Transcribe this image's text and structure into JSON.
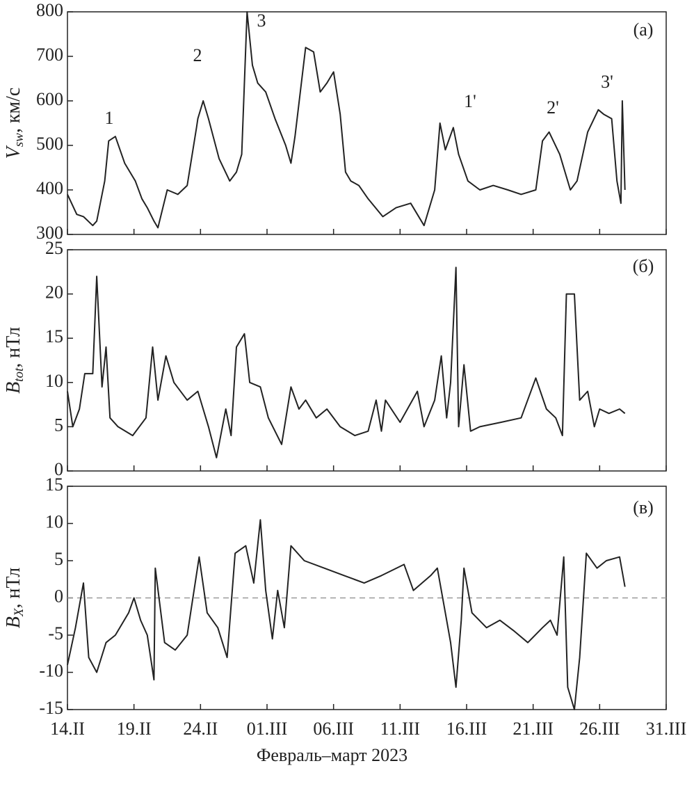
{
  "chart_data": [
    {
      "type": "line",
      "panel_label": "(а)",
      "ylabel_symbol": "V",
      "ylabel_subscript": "sw",
      "ylabel_unit": ", км/с",
      "color": "#222222",
      "xlim": [
        0,
        45
      ],
      "ylim": [
        300,
        800
      ],
      "yticks": [
        300,
        400,
        500,
        600,
        700,
        800
      ],
      "annotations": [
        "1",
        "2",
        "3",
        "1'",
        "2'",
        "3'"
      ],
      "x": [
        0,
        0.7,
        1.2,
        1.9,
        2.2,
        2.8,
        3.1,
        3.6,
        4.3,
        5.1,
        5.6,
        6.0,
        6.5,
        6.8,
        7.5,
        8.3,
        9.0,
        9.7,
        9.8,
        10.2,
        10.6,
        11.4,
        12.2,
        12.7,
        13.1,
        13.5,
        13.9,
        14.3,
        14.9,
        15.6,
        16.4,
        16.8,
        17.1,
        17.9,
        18.5,
        19.0,
        19.5,
        20.0,
        20.5,
        20.9,
        21.3,
        21.9,
        22.6,
        23.7,
        24.7,
        25.8,
        26.8,
        27.6,
        28.0,
        28.4,
        29.0,
        29.4,
        30.1,
        31.0,
        32.0,
        33.1,
        34.1,
        35.2,
        35.7,
        36.2,
        37.0,
        37.8,
        38.3,
        39.1,
        39.9,
        40.3,
        40.9,
        41.3,
        41.6,
        41.7,
        41.9
      ],
      "values": [
        390,
        345,
        340,
        320,
        330,
        420,
        510,
        520,
        460,
        420,
        380,
        360,
        330,
        315,
        400,
        390,
        410,
        540,
        560,
        600,
        560,
        470,
        420,
        440,
        480,
        800,
        680,
        640,
        620,
        560,
        500,
        460,
        520,
        720,
        710,
        620,
        640,
        665,
        570,
        440,
        420,
        410,
        380,
        340,
        360,
        370,
        320,
        400,
        550,
        490,
        540,
        480,
        420,
        400,
        410,
        400,
        390,
        400,
        510,
        530,
        480,
        400,
        420,
        530,
        580,
        570,
        560,
        420,
        370,
        600,
        400
      ]
    },
    {
      "type": "line",
      "panel_label": "(б)",
      "ylabel_symbol": "B",
      "ylabel_subscript": "tot",
      "ylabel_unit": ", нТл",
      "color": "#222222",
      "xlim": [
        0,
        45
      ],
      "ylim": [
        0,
        25
      ],
      "yticks": [
        0,
        5,
        10,
        15,
        20,
        25
      ],
      "x": [
        0,
        0.4,
        0.9,
        1.3,
        1.9,
        2.2,
        2.6,
        2.9,
        3.2,
        3.8,
        4.9,
        5.9,
        6.4,
        6.8,
        7.4,
        8.0,
        9.0,
        9.8,
        10.6,
        11.2,
        11.9,
        12.3,
        12.7,
        13.3,
        13.7,
        14.5,
        15.1,
        16.1,
        16.8,
        17.4,
        17.9,
        18.7,
        19.5,
        20.5,
        21.6,
        22.6,
        23.2,
        23.6,
        23.9,
        25.0,
        26.3,
        26.8,
        27.6,
        28.1,
        28.5,
        28.8,
        29.2,
        29.4,
        29.8,
        30.3,
        31.0,
        32.6,
        34.1,
        35.2,
        36.0,
        36.7,
        37.2,
        37.5,
        38.1,
        38.5,
        39.1,
        39.6,
        40.0,
        40.7,
        41.5,
        41.9
      ],
      "values": [
        9,
        5,
        7,
        11,
        11,
        22,
        9.5,
        14,
        6,
        5,
        4,
        6,
        14,
        8,
        13,
        10,
        8,
        9,
        5,
        1.5,
        7,
        4,
        14,
        15.5,
        10,
        9.5,
        6,
        3,
        9.5,
        7,
        8,
        6,
        7,
        5,
        4,
        4.5,
        8,
        4.5,
        8,
        5.5,
        9,
        5,
        8,
        13,
        6,
        10,
        23,
        5,
        12,
        4.5,
        5,
        5.5,
        6,
        10.5,
        7,
        6,
        4,
        20,
        20,
        8,
        9,
        5,
        7,
        6.5,
        7,
        6.5
      ]
    },
    {
      "type": "line",
      "panel_label": "(в)",
      "ylabel_symbol": "B",
      "ylabel_subscript": "X",
      "ylabel_unit": ", нТл",
      "color": "#222222",
      "xlim": [
        0,
        45
      ],
      "ylim": [
        -15,
        15
      ],
      "yticks": [
        -15,
        -10,
        -5,
        0,
        5,
        10,
        15
      ],
      "hline": 0,
      "hline_color": "#999999",
      "xlabel": "Февраль–март 2023",
      "xticks": [
        {
          "value": 0,
          "label": "14.II"
        },
        {
          "value": 5,
          "label": "19.II"
        },
        {
          "value": 10,
          "label": "24.II"
        },
        {
          "value": 15,
          "label": "01.III"
        },
        {
          "value": 20,
          "label": "06.III"
        },
        {
          "value": 25,
          "label": "11.III"
        },
        {
          "value": 30,
          "label": "16.III"
        },
        {
          "value": 35,
          "label": "21.III"
        },
        {
          "value": 40,
          "label": "26.III"
        },
        {
          "value": 45,
          "label": "31.III"
        }
      ],
      "x": [
        0,
        0.6,
        1.2,
        1.6,
        2.2,
        2.9,
        3.6,
        4.6,
        5.0,
        5.5,
        6.0,
        6.5,
        6.6,
        7.3,
        8.1,
        9.0,
        9.9,
        10.5,
        11.3,
        12.0,
        12.6,
        13.4,
        14.0,
        14.5,
        14.9,
        15.4,
        15.8,
        16.3,
        16.8,
        17.8,
        19.3,
        20.8,
        22.3,
        23.6,
        25.3,
        26.0,
        27.3,
        27.8,
        28.4,
        28.8,
        29.2,
        29.6,
        29.8,
        30.4,
        31.5,
        32.5,
        33.6,
        34.6,
        35.7,
        36.3,
        36.8,
        37.3,
        37.6,
        38.1,
        38.5,
        39.0,
        39.8,
        40.5,
        41.5,
        41.9
      ],
      "values": [
        -9,
        -4,
        2,
        -8,
        -10,
        -6,
        -5,
        -2,
        0,
        -3,
        -5,
        -11,
        4,
        -6,
        -7,
        -5,
        5.5,
        -2,
        -4,
        -8,
        6,
        7,
        2,
        10.5,
        1,
        -5.5,
        1,
        -4,
        7,
        5,
        4,
        3,
        2,
        3,
        4.5,
        1,
        3,
        4,
        -2,
        -6,
        -12,
        -3,
        4,
        -2,
        -4,
        -3,
        -4.5,
        -6,
        -4,
        -3,
        -5,
        5.5,
        -12,
        -15,
        -8,
        6,
        4,
        5,
        5.5,
        1.5
      ]
    }
  ]
}
